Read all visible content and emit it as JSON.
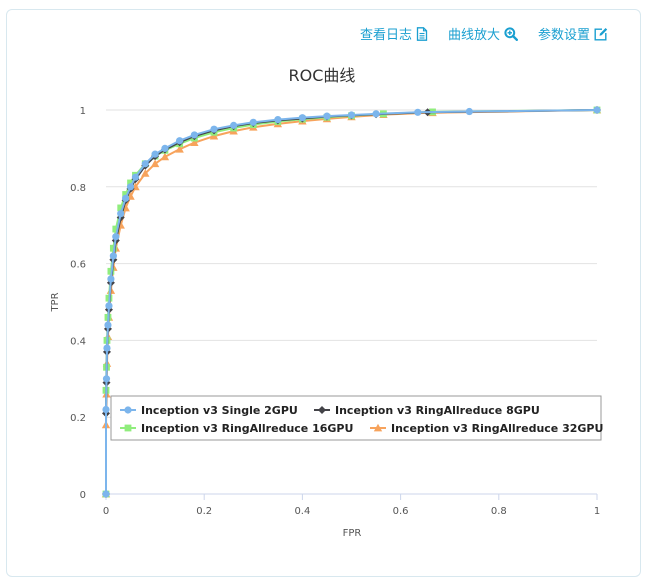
{
  "toolbar": {
    "view_log": "查看日志",
    "zoom_curve": "曲线放大",
    "params": "参数设置"
  },
  "chart_data": {
    "type": "line",
    "title": "ROC曲线",
    "xlabel": "FPR",
    "ylabel": "TPR",
    "xlim": [
      0,
      1
    ],
    "ylim": [
      0,
      1
    ],
    "xticks": [
      "0",
      "0.2",
      "0.4",
      "0.6",
      "0.8",
      "1"
    ],
    "yticks": [
      "0",
      "0.2",
      "0.4",
      "0.6",
      "0.8",
      "1"
    ],
    "grid": "horizontal",
    "legend_placement": "bottom-right",
    "series": [
      {
        "name": "Inception v3 Single 2GPU",
        "color": "#7cb5ec",
        "marker": "circle",
        "x": [
          0,
          0,
          0.001,
          0.002,
          0.004,
          0.006,
          0.01,
          0.015,
          0.02,
          0.03,
          0.04,
          0.05,
          0.06,
          0.08,
          0.1,
          0.12,
          0.15,
          0.18,
          0.22,
          0.26,
          0.3,
          0.35,
          0.4,
          0.45,
          0.5,
          0.55,
          0.635,
          0.74,
          1
        ],
        "y": [
          0,
          0.22,
          0.3,
          0.38,
          0.44,
          0.49,
          0.56,
          0.62,
          0.67,
          0.73,
          0.77,
          0.8,
          0.825,
          0.86,
          0.885,
          0.9,
          0.92,
          0.935,
          0.95,
          0.96,
          0.968,
          0.975,
          0.98,
          0.984,
          0.987,
          0.99,
          0.994,
          0.996,
          1
        ]
      },
      {
        "name": "Inception v3 RingAllreduce 8GPU",
        "color": "#434348",
        "marker": "diamond",
        "x": [
          0,
          0,
          0.001,
          0.002,
          0.004,
          0.006,
          0.01,
          0.015,
          0.02,
          0.03,
          0.04,
          0.05,
          0.06,
          0.08,
          0.1,
          0.12,
          0.15,
          0.18,
          0.22,
          0.26,
          0.3,
          0.35,
          0.4,
          0.45,
          0.5,
          0.55,
          0.655,
          1
        ],
        "y": [
          0,
          0.21,
          0.29,
          0.37,
          0.43,
          0.48,
          0.55,
          0.61,
          0.66,
          0.72,
          0.765,
          0.795,
          0.82,
          0.855,
          0.88,
          0.897,
          0.916,
          0.932,
          0.947,
          0.958,
          0.966,
          0.973,
          0.978,
          0.983,
          0.986,
          0.989,
          0.994,
          1
        ]
      },
      {
        "name": "Inception v3 RingAllreduce 16GPU",
        "color": "#90ed7d",
        "marker": "square",
        "x": [
          0,
          0,
          0.001,
          0.002,
          0.004,
          0.006,
          0.01,
          0.015,
          0.02,
          0.03,
          0.04,
          0.05,
          0.06,
          0.08,
          0.1,
          0.12,
          0.15,
          0.18,
          0.22,
          0.26,
          0.3,
          0.35,
          0.4,
          0.45,
          0.5,
          0.565,
          0.665,
          1
        ],
        "y": [
          0,
          0.27,
          0.33,
          0.4,
          0.46,
          0.51,
          0.58,
          0.64,
          0.69,
          0.745,
          0.78,
          0.81,
          0.83,
          0.86,
          0.88,
          0.895,
          0.912,
          0.927,
          0.942,
          0.953,
          0.962,
          0.97,
          0.976,
          0.981,
          0.985,
          0.99,
          0.995,
          1
        ]
      },
      {
        "name": "Inception v3 RingAllreduce 32GPU",
        "color": "#f7a35c",
        "marker": "triangle",
        "x": [
          0,
          0,
          0.001,
          0.002,
          0.004,
          0.006,
          0.01,
          0.015,
          0.02,
          0.03,
          0.04,
          0.05,
          0.06,
          0.08,
          0.1,
          0.12,
          0.15,
          0.18,
          0.22,
          0.26,
          0.3,
          0.35,
          0.4,
          0.45,
          0.5,
          0.565,
          0.665,
          1
        ],
        "y": [
          0,
          0.18,
          0.26,
          0.34,
          0.41,
          0.46,
          0.53,
          0.59,
          0.64,
          0.7,
          0.745,
          0.775,
          0.8,
          0.835,
          0.86,
          0.878,
          0.898,
          0.915,
          0.932,
          0.945,
          0.955,
          0.964,
          0.971,
          0.977,
          0.982,
          0.988,
          0.993,
          1
        ]
      }
    ]
  }
}
